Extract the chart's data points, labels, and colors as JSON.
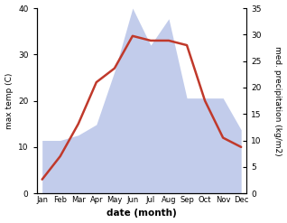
{
  "months": [
    "Jan",
    "Feb",
    "Mar",
    "Apr",
    "May",
    "Jun",
    "Jul",
    "Aug",
    "Sep",
    "Oct",
    "Nov",
    "Dec"
  ],
  "temp": [
    3,
    8,
    15,
    24,
    27,
    34,
    33,
    33,
    32,
    20,
    12,
    10
  ],
  "precip": [
    10,
    10,
    11,
    13,
    23,
    35,
    28,
    33,
    18,
    18,
    18,
    12
  ],
  "temp_color": "#c0392b",
  "precip_fill_color": "#b8c4e8",
  "xlabel": "date (month)",
  "ylabel_left": "max temp (C)",
  "ylabel_right": "med. precipitation (kg/m2)",
  "ylim_left": [
    0,
    40
  ],
  "ylim_right": [
    0,
    35
  ],
  "yticks_left": [
    0,
    10,
    20,
    30,
    40
  ],
  "yticks_right": [
    0,
    5,
    10,
    15,
    20,
    25,
    30,
    35
  ],
  "background_color": "#ffffff",
  "line_width": 1.8
}
